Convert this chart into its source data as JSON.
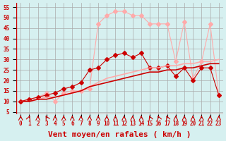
{
  "bg_color": "#d6f0f0",
  "grid_color": "#aaaaaa",
  "xlabel": "Vent moyen/en rafales ( km/h )",
  "xlabel_color": "#cc0000",
  "xlabel_fontsize": 8,
  "xtick_color": "#cc0000",
  "ytick_color": "#cc0000",
  "ytick_labels": [
    "5",
    "10",
    "15",
    "20",
    "25",
    "30",
    "35",
    "40",
    "45",
    "50",
    "55"
  ],
  "ytick_values": [
    5,
    10,
    15,
    20,
    25,
    30,
    35,
    40,
    45,
    50,
    55
  ],
  "xlim": [
    -0.5,
    23.5
  ],
  "ylim": [
    4,
    57
  ],
  "x": [
    0,
    1,
    2,
    3,
    4,
    5,
    6,
    7,
    8,
    9,
    10,
    11,
    12,
    13,
    14,
    15,
    16,
    17,
    18,
    19,
    20,
    21,
    22,
    23
  ],
  "line1_y": [
    10,
    11,
    12,
    14,
    10,
    14,
    15,
    15,
    16,
    47,
    51,
    53,
    53,
    51,
    51,
    47,
    47,
    47,
    29,
    48,
    21,
    29,
    47,
    13
  ],
  "line1_color": "#ffaaaa",
  "line1_marker": "D",
  "line1_ms": 3,
  "line2_y": [
    10,
    11,
    12,
    13,
    14,
    16,
    17,
    19,
    25,
    26,
    30,
    32,
    33,
    31,
    33,
    26,
    26,
    27,
    22,
    26,
    20,
    26,
    26,
    13
  ],
  "line2_color": "#cc0000",
  "line2_marker": "D",
  "line2_ms": 3,
  "line3_y": [
    10,
    10,
    11,
    12,
    12,
    13,
    14,
    15,
    17,
    19,
    21,
    22,
    23,
    24,
    25,
    26,
    26,
    27,
    27,
    28,
    28,
    29,
    29,
    30
  ],
  "line3_color": "#ffaaaa",
  "line3_marker": null,
  "line3_lw": 1.2,
  "line4_y": [
    10,
    10,
    11,
    11,
    12,
    13,
    14,
    15,
    17,
    18,
    19,
    20,
    21,
    22,
    23,
    24,
    24,
    25,
    25,
    26,
    26,
    27,
    28,
    28
  ],
  "line4_color": "#cc0000",
  "line4_marker": null,
  "line4_lw": 1.2,
  "arrow_color": "#cc0000"
}
